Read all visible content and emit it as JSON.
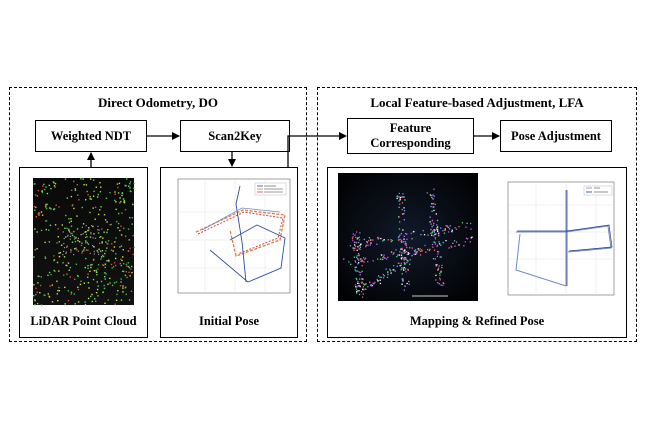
{
  "panels": {
    "do": {
      "title": "Direct Odometry, DO"
    },
    "lfa": {
      "title": "Local Feature-based Adjustment, LFA"
    }
  },
  "boxes": {
    "weighted_ndt": "Weighted NDT",
    "scan2key": "Scan2Key",
    "feature_corresponding_1": "Feature",
    "feature_corresponding_2": "Corresponding",
    "pose_adjustment": "Pose Adjustment"
  },
  "captions": {
    "lidar": "LiDAR Point Cloud",
    "initial_pose": "Initial Pose",
    "mapping": "Mapping  & Refined Pose"
  },
  "colors": {
    "ground_truth": "#2b4fa0",
    "estimate_a": "#e0793a",
    "estimate_b": "#c1464b",
    "refined": "#1f3c88"
  },
  "icons": [
    "arrow-right-icon",
    "arrow-up-icon",
    "arrow-down-icon"
  ]
}
